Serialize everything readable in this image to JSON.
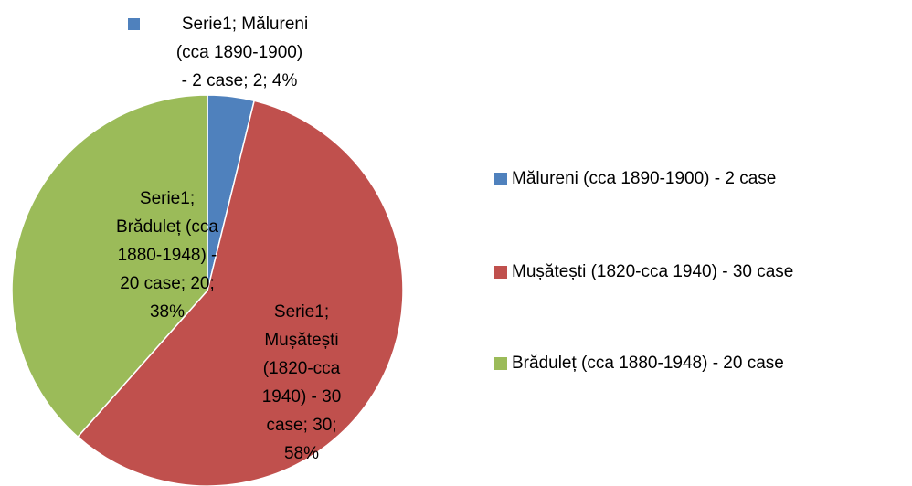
{
  "chart_data": {
    "type": "pie",
    "series_name": "Serie1",
    "categories": [
      "Mălureni (cca 1890-1900) - 2 case",
      "Mușătești (1820-cca 1940) - 30 case",
      "Brăduleț (cca 1880-1948) - 20 case"
    ],
    "values": [
      2,
      30,
      20
    ],
    "colors": [
      "#4f81bd",
      "#c0504d",
      "#9bbb59"
    ],
    "value_labels": [
      [
        "Serie1; Mălureni",
        "(cca 1890-1900)",
        "- 2 case; 2; 4%"
      ],
      [
        "Serie1;",
        "Mușătești",
        "(1820-cca",
        "1940) - 30",
        "case; 30;",
        "58%"
      ],
      [
        "Serie1;",
        "Brăduleț (cca",
        "1880-1948) -",
        "20 case; 20;",
        "38%"
      ]
    ],
    "legend": "right"
  }
}
